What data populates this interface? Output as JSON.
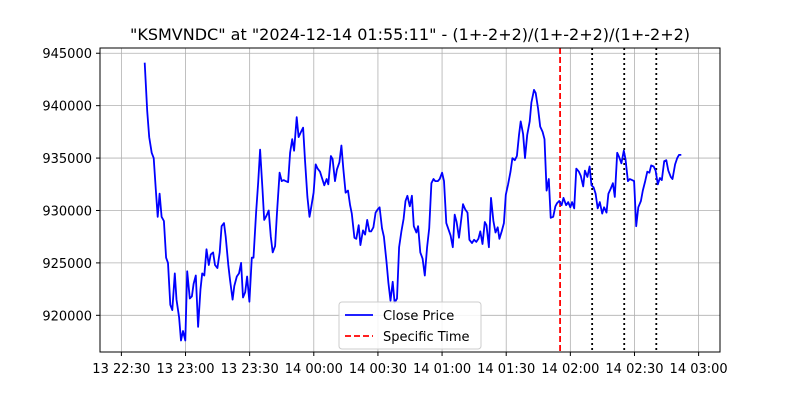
{
  "chart_data": {
    "type": "line",
    "title": "\"KSMVNDC\" at \"2024-12-14 01:55:11\" - (1+-2+2)/(1+-2+2)/(1+-2+2)",
    "xlabel": "",
    "ylabel": "",
    "x_range_minutes": [
      1340,
      1630
    ],
    "ylim": [
      916500,
      945500
    ],
    "grid": true,
    "legend_position": "lower-center",
    "x_ticks": [
      {
        "label": "13 22:30",
        "minute": 1350
      },
      {
        "label": "13 23:00",
        "minute": 1380
      },
      {
        "label": "13 23:30",
        "minute": 1410
      },
      {
        "label": "14 00:00",
        "minute": 1440
      },
      {
        "label": "14 00:30",
        "minute": 1470
      },
      {
        "label": "14 01:00",
        "minute": 1500
      },
      {
        "label": "14 01:30",
        "minute": 1530
      },
      {
        "label": "14 02:00",
        "minute": 1560
      },
      {
        "label": "14 02:30",
        "minute": 1590
      },
      {
        "label": "14 03:00",
        "minute": 1620
      }
    ],
    "y_ticks": [
      920000,
      925000,
      930000,
      935000,
      940000,
      945000
    ],
    "series": [
      {
        "name": "Close Price",
        "color": "#0000ff",
        "points": [
          [
            1360.9,
            944100
          ],
          [
            1362.1,
            939500
          ],
          [
            1363.0,
            937000
          ],
          [
            1364.2,
            935500
          ],
          [
            1365.1,
            935000
          ],
          [
            1366.1,
            932000
          ],
          [
            1367.0,
            929400
          ],
          [
            1367.9,
            931600
          ],
          [
            1368.8,
            929400
          ],
          [
            1369.9,
            929000
          ],
          [
            1370.9,
            925500
          ],
          [
            1371.8,
            925000
          ],
          [
            1372.9,
            921000
          ],
          [
            1373.8,
            920500
          ],
          [
            1375.0,
            924000
          ],
          [
            1375.8,
            921500
          ],
          [
            1377.0,
            919800
          ],
          [
            1377.9,
            917600
          ],
          [
            1378.8,
            918500
          ],
          [
            1379.9,
            917600
          ],
          [
            1380.8,
            924200
          ],
          [
            1382.0,
            921600
          ],
          [
            1383.0,
            921800
          ],
          [
            1383.8,
            923000
          ],
          [
            1384.8,
            923800
          ],
          [
            1385.9,
            918900
          ],
          [
            1387.0,
            922500
          ],
          [
            1387.8,
            924000
          ],
          [
            1388.8,
            923800
          ],
          [
            1389.8,
            926300
          ],
          [
            1390.9,
            924800
          ],
          [
            1391.8,
            925800
          ],
          [
            1392.9,
            926000
          ],
          [
            1393.8,
            924800
          ],
          [
            1394.9,
            924500
          ],
          [
            1396.0,
            926000
          ],
          [
            1396.9,
            928500
          ],
          [
            1398.0,
            928800
          ],
          [
            1398.8,
            927500
          ],
          [
            1400.0,
            924800
          ],
          [
            1400.8,
            923400
          ],
          [
            1402.0,
            921500
          ],
          [
            1402.8,
            922800
          ],
          [
            1404.0,
            923700
          ],
          [
            1405.0,
            924000
          ],
          [
            1406.0,
            925000
          ],
          [
            1406.9,
            921700
          ],
          [
            1407.9,
            922200
          ],
          [
            1408.8,
            923700
          ],
          [
            1409.9,
            921300
          ],
          [
            1411.0,
            925500
          ],
          [
            1411.8,
            925500
          ],
          [
            1413.0,
            929800
          ],
          [
            1414.0,
            932700
          ],
          [
            1414.9,
            935800
          ],
          [
            1416.0,
            932000
          ],
          [
            1416.8,
            929100
          ],
          [
            1417.9,
            929500
          ],
          [
            1418.9,
            930000
          ],
          [
            1419.9,
            927500
          ],
          [
            1420.8,
            926000
          ],
          [
            1421.9,
            926600
          ],
          [
            1422.8,
            929800
          ],
          [
            1424.0,
            933600
          ],
          [
            1425.0,
            932800
          ],
          [
            1426.0,
            932900
          ],
          [
            1426.8,
            932800
          ],
          [
            1428.0,
            932700
          ],
          [
            1428.9,
            935500
          ],
          [
            1429.9,
            936800
          ],
          [
            1430.8,
            935700
          ],
          [
            1432.0,
            938900
          ],
          [
            1432.9,
            937000
          ],
          [
            1434.0,
            937500
          ],
          [
            1435.0,
            937900
          ],
          [
            1435.9,
            934800
          ],
          [
            1437.0,
            931300
          ],
          [
            1438.0,
            929400
          ],
          [
            1438.8,
            930300
          ],
          [
            1439.9,
            931700
          ],
          [
            1440.9,
            934400
          ],
          [
            1441.8,
            934000
          ],
          [
            1442.9,
            933700
          ],
          [
            1444.0,
            933000
          ],
          [
            1444.9,
            932400
          ],
          [
            1446.0,
            933000
          ],
          [
            1446.8,
            932500
          ],
          [
            1448.0,
            935200
          ],
          [
            1448.8,
            934900
          ],
          [
            1449.9,
            932800
          ],
          [
            1450.8,
            933900
          ],
          [
            1452.0,
            934600
          ],
          [
            1452.9,
            936200
          ],
          [
            1453.8,
            934000
          ],
          [
            1454.9,
            931700
          ],
          [
            1456.0,
            931900
          ],
          [
            1457.0,
            930500
          ],
          [
            1457.8,
            929700
          ],
          [
            1459.0,
            927400
          ],
          [
            1459.9,
            927300
          ],
          [
            1461.0,
            928600
          ],
          [
            1461.8,
            926700
          ],
          [
            1463.0,
            928100
          ],
          [
            1464.0,
            927700
          ],
          [
            1465.0,
            929100
          ],
          [
            1466.0,
            928000
          ],
          [
            1466.8,
            928000
          ],
          [
            1467.9,
            928400
          ],
          [
            1468.9,
            929800
          ],
          [
            1469.9,
            930100
          ],
          [
            1470.8,
            930300
          ],
          [
            1471.9,
            928300
          ],
          [
            1472.8,
            927500
          ],
          [
            1474.0,
            925100
          ],
          [
            1474.9,
            923100
          ],
          [
            1475.9,
            921400
          ],
          [
            1476.9,
            923200
          ],
          [
            1477.8,
            921200
          ],
          [
            1478.9,
            921600
          ],
          [
            1479.9,
            926500
          ],
          [
            1481.0,
            928000
          ],
          [
            1482.0,
            929200
          ],
          [
            1482.9,
            930900
          ],
          [
            1483.8,
            931400
          ],
          [
            1484.9,
            930400
          ],
          [
            1485.9,
            931400
          ],
          [
            1486.8,
            928500
          ],
          [
            1488.0,
            927900
          ],
          [
            1488.8,
            928500
          ],
          [
            1489.8,
            926000
          ],
          [
            1490.9,
            925400
          ],
          [
            1491.9,
            923800
          ],
          [
            1493.0,
            926500
          ],
          [
            1494.0,
            928300
          ],
          [
            1495.0,
            932600
          ],
          [
            1496.0,
            933000
          ],
          [
            1496.8,
            932800
          ],
          [
            1498.0,
            932800
          ],
          [
            1498.9,
            933000
          ],
          [
            1500.0,
            933600
          ],
          [
            1500.9,
            932800
          ],
          [
            1502.0,
            928800
          ],
          [
            1503.0,
            928200
          ],
          [
            1504.0,
            927600
          ],
          [
            1505.0,
            926500
          ],
          [
            1505.9,
            929600
          ],
          [
            1506.8,
            928900
          ],
          [
            1507.9,
            927400
          ],
          [
            1509.0,
            929200
          ],
          [
            1509.8,
            930600
          ],
          [
            1510.8,
            930100
          ],
          [
            1511.9,
            929800
          ],
          [
            1512.8,
            927200
          ],
          [
            1514.0,
            926900
          ],
          [
            1515.0,
            927200
          ],
          [
            1516.0,
            927000
          ],
          [
            1517.0,
            927300
          ],
          [
            1517.9,
            928000
          ],
          [
            1518.9,
            926800
          ],
          [
            1520.0,
            928900
          ],
          [
            1520.8,
            928600
          ],
          [
            1521.9,
            926500
          ],
          [
            1522.9,
            931200
          ],
          [
            1524.0,
            929000
          ],
          [
            1525.0,
            927900
          ],
          [
            1526.0,
            928400
          ],
          [
            1526.8,
            927300
          ],
          [
            1527.9,
            928000
          ],
          [
            1528.9,
            928800
          ],
          [
            1529.8,
            931500
          ],
          [
            1530.9,
            932500
          ],
          [
            1532.0,
            933700
          ],
          [
            1532.9,
            935000
          ],
          [
            1534.0,
            934800
          ],
          [
            1535.0,
            935200
          ],
          [
            1536.0,
            937200
          ],
          [
            1536.8,
            938500
          ],
          [
            1537.9,
            937300
          ],
          [
            1538.8,
            935000
          ],
          [
            1539.8,
            937200
          ],
          [
            1541.0,
            938500
          ],
          [
            1541.8,
            940300
          ],
          [
            1543.0,
            941500
          ],
          [
            1543.8,
            941200
          ],
          [
            1544.9,
            939700
          ],
          [
            1545.9,
            938000
          ],
          [
            1547.0,
            937500
          ],
          [
            1547.9,
            936800
          ],
          [
            1548.9,
            931900
          ],
          [
            1549.9,
            933000
          ],
          [
            1550.8,
            929300
          ],
          [
            1552.0,
            929400
          ],
          [
            1553.0,
            930400
          ],
          [
            1553.8,
            930700
          ],
          [
            1554.8,
            930900
          ],
          [
            1555.9,
            930500
          ],
          [
            1556.8,
            931200
          ],
          [
            1558.0,
            930500
          ],
          [
            1559.0,
            930800
          ],
          [
            1560.0,
            930300
          ],
          [
            1560.8,
            930800
          ],
          [
            1561.8,
            930200
          ],
          [
            1562.8,
            934000
          ],
          [
            1564.0,
            933700
          ],
          [
            1564.9,
            933300
          ],
          [
            1566.0,
            932300
          ],
          [
            1566.8,
            933800
          ],
          [
            1568.0,
            933200
          ],
          [
            1569.0,
            934200
          ],
          [
            1569.9,
            932400
          ],
          [
            1570.9,
            932200
          ],
          [
            1571.8,
            931600
          ],
          [
            1572.8,
            930200
          ],
          [
            1573.8,
            930800
          ],
          [
            1574.9,
            929700
          ],
          [
            1575.8,
            930300
          ],
          [
            1576.9,
            929800
          ],
          [
            1577.8,
            931600
          ],
          [
            1578.9,
            932100
          ],
          [
            1579.9,
            932600
          ],
          [
            1580.8,
            931300
          ],
          [
            1581.9,
            935500
          ],
          [
            1582.8,
            935100
          ],
          [
            1583.9,
            934500
          ],
          [
            1585.0,
            935700
          ],
          [
            1585.8,
            934900
          ],
          [
            1586.9,
            932800
          ],
          [
            1587.8,
            933000
          ],
          [
            1588.9,
            932900
          ],
          [
            1589.8,
            932800
          ],
          [
            1590.8,
            928500
          ],
          [
            1591.8,
            930300
          ],
          [
            1593.0,
            930900
          ],
          [
            1593.9,
            931900
          ],
          [
            1595.0,
            932800
          ],
          [
            1596.0,
            933700
          ],
          [
            1597.0,
            933600
          ],
          [
            1597.8,
            934300
          ],
          [
            1599.0,
            934200
          ],
          [
            1599.9,
            933800
          ],
          [
            1600.9,
            932500
          ],
          [
            1601.9,
            933100
          ],
          [
            1602.8,
            932900
          ],
          [
            1603.9,
            934700
          ],
          [
            1604.9,
            934800
          ],
          [
            1605.8,
            933800
          ],
          [
            1607.0,
            933200
          ],
          [
            1607.8,
            933000
          ],
          [
            1609.0,
            934400
          ],
          [
            1610.0,
            935000
          ],
          [
            1610.8,
            935300
          ],
          [
            1611.9,
            935300
          ]
        ]
      },
      {
        "name": "Specific Time",
        "color": "#ff0000",
        "x_minute": 1555.2
      }
    ],
    "dotted_markers": [
      {
        "color": "#000000",
        "x_minute": 1570.2
      },
      {
        "color": "#000000",
        "x_minute": 1585.2
      },
      {
        "color": "#000000",
        "x_minute": 1600.2
      }
    ]
  }
}
